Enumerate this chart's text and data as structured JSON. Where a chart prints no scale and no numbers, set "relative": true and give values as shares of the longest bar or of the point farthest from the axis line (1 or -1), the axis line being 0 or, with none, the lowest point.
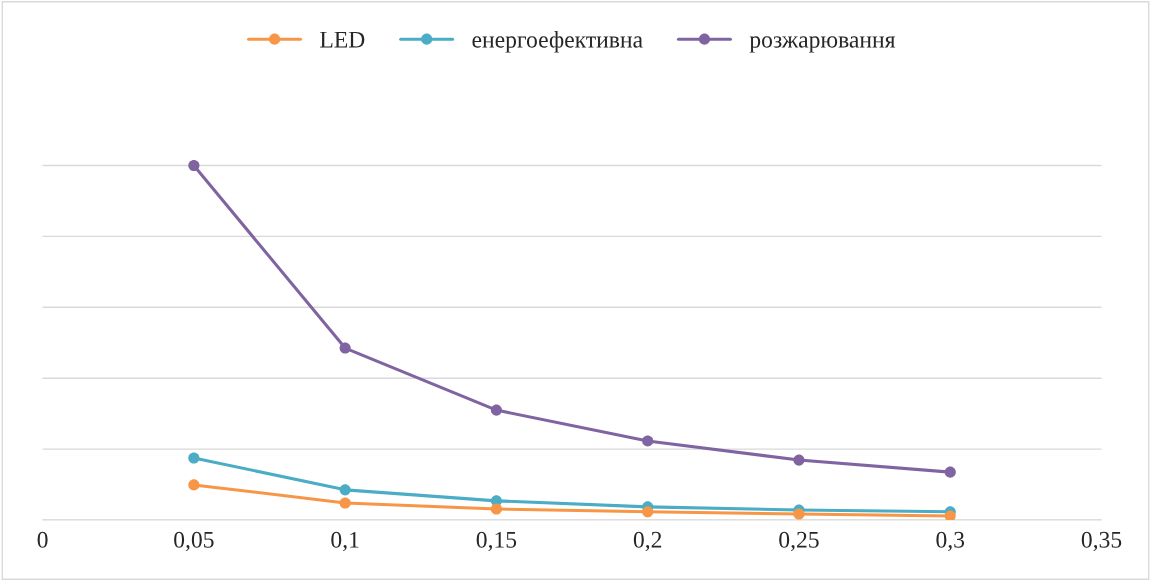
{
  "chart_data": {
    "type": "line",
    "relative": true,
    "x": [
      0.05,
      0.1,
      0.15,
      0.2,
      0.25,
      0.3
    ],
    "xlim": [
      0,
      0.35
    ],
    "xticks": [
      0,
      {
        "value": 0.05,
        "label": "0,05"
      },
      {
        "value": 0.1,
        "label": "0,1"
      },
      {
        "value": 0.15,
        "label": "0,15"
      },
      {
        "value": 0.2,
        "label": "0,2"
      },
      {
        "value": 0.25,
        "label": "0,25"
      },
      {
        "value": 0.3,
        "label": "0,3"
      },
      {
        "value": 0.35,
        "label": "0,35"
      }
    ],
    "series": [
      {
        "name": "LED",
        "color": "#f79646",
        "values": [
          0.099,
          0.048,
          0.031,
          0.023,
          0.017,
          0.011
        ]
      },
      {
        "name": "енергоефективна",
        "color": "#4bacc6",
        "values": [
          0.175,
          0.085,
          0.054,
          0.037,
          0.028,
          0.023
        ]
      },
      {
        "name": "розжарювання",
        "color": "#8064a2",
        "values": [
          1,
          0.485,
          0.31,
          0.223,
          0.169,
          0.135
        ]
      }
    ],
    "marker": "circle",
    "line_style": "solid",
    "grid": "y",
    "legend": "top",
    "tick_labels": "x"
  }
}
